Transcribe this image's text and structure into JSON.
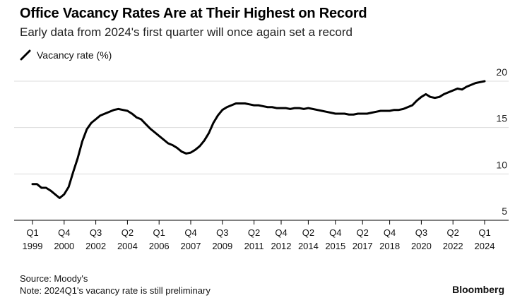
{
  "title": "Office Vacancy Rates Are at Their Highest on Record",
  "subtitle": "Early data from 2024's first quarter will once again set a record",
  "legend": {
    "label": "Vacancy rate (%)",
    "color": "#000000"
  },
  "footer": {
    "source": "Source: Moody's",
    "note": "Note: 2024Q1's vacancy rate is still preliminary",
    "brand": "Bloomberg"
  },
  "chart_data": {
    "type": "line",
    "ylim": [
      5,
      20
    ],
    "yticks": [
      5,
      10,
      15,
      20
    ],
    "grid": true,
    "legend_position": "top-left",
    "x_ticks": [
      {
        "q": "Q1",
        "year": "1999",
        "t": 1999.0
      },
      {
        "q": "Q4",
        "year": "2000",
        "t": 2000.75
      },
      {
        "q": "Q3",
        "year": "2002",
        "t": 2002.5
      },
      {
        "q": "Q2",
        "year": "2004",
        "t": 2004.25
      },
      {
        "q": "Q1",
        "year": "2006",
        "t": 2006.0
      },
      {
        "q": "Q4",
        "year": "2007",
        "t": 2007.75
      },
      {
        "q": "Q3",
        "year": "2009",
        "t": 2009.5
      },
      {
        "q": "Q2",
        "year": "2011",
        "t": 2011.25
      },
      {
        "q": "Q4",
        "year": "2012",
        "t": 2012.75
      },
      {
        "q": "Q2",
        "year": "2014",
        "t": 2014.25
      },
      {
        "q": "Q4",
        "year": "2015",
        "t": 2015.75
      },
      {
        "q": "Q2",
        "year": "2017",
        "t": 2017.25
      },
      {
        "q": "Q4",
        "year": "2018",
        "t": 2018.75
      },
      {
        "q": "Q3",
        "year": "2020",
        "t": 2020.5
      },
      {
        "q": "Q2",
        "year": "2022",
        "t": 2022.25
      },
      {
        "q": "Q1",
        "year": "2024",
        "t": 2024.0
      }
    ],
    "series": [
      {
        "name": "Vacancy rate (%)",
        "points": [
          [
            1999.0,
            8.9
          ],
          [
            1999.25,
            8.9
          ],
          [
            1999.5,
            8.5
          ],
          [
            1999.75,
            8.5
          ],
          [
            2000.0,
            8.2
          ],
          [
            2000.25,
            7.8
          ],
          [
            2000.5,
            7.4
          ],
          [
            2000.75,
            7.8
          ],
          [
            2001.0,
            8.6
          ],
          [
            2001.25,
            10.2
          ],
          [
            2001.5,
            11.7
          ],
          [
            2001.75,
            13.5
          ],
          [
            2002.0,
            14.8
          ],
          [
            2002.25,
            15.5
          ],
          [
            2002.5,
            15.9
          ],
          [
            2002.75,
            16.3
          ],
          [
            2003.0,
            16.5
          ],
          [
            2003.25,
            16.7
          ],
          [
            2003.5,
            16.9
          ],
          [
            2003.75,
            17.0
          ],
          [
            2004.0,
            16.9
          ],
          [
            2004.25,
            16.8
          ],
          [
            2004.5,
            16.5
          ],
          [
            2004.75,
            16.1
          ],
          [
            2005.0,
            15.9
          ],
          [
            2005.25,
            15.4
          ],
          [
            2005.5,
            14.9
          ],
          [
            2005.75,
            14.5
          ],
          [
            2006.0,
            14.1
          ],
          [
            2006.25,
            13.7
          ],
          [
            2006.5,
            13.3
          ],
          [
            2006.75,
            13.1
          ],
          [
            2007.0,
            12.8
          ],
          [
            2007.25,
            12.4
          ],
          [
            2007.5,
            12.2
          ],
          [
            2007.75,
            12.3
          ],
          [
            2008.0,
            12.6
          ],
          [
            2008.25,
            13.0
          ],
          [
            2008.5,
            13.6
          ],
          [
            2008.75,
            14.4
          ],
          [
            2009.0,
            15.5
          ],
          [
            2009.25,
            16.3
          ],
          [
            2009.5,
            16.9
          ],
          [
            2009.75,
            17.2
          ],
          [
            2010.0,
            17.4
          ],
          [
            2010.25,
            17.6
          ],
          [
            2010.5,
            17.6
          ],
          [
            2010.75,
            17.6
          ],
          [
            2011.0,
            17.5
          ],
          [
            2011.25,
            17.4
          ],
          [
            2011.5,
            17.4
          ],
          [
            2011.75,
            17.3
          ],
          [
            2012.0,
            17.2
          ],
          [
            2012.25,
            17.2
          ],
          [
            2012.5,
            17.1
          ],
          [
            2012.75,
            17.1
          ],
          [
            2013.0,
            17.1
          ],
          [
            2013.25,
            17.0
          ],
          [
            2013.5,
            17.1
          ],
          [
            2013.75,
            17.1
          ],
          [
            2014.0,
            17.0
          ],
          [
            2014.25,
            17.1
          ],
          [
            2014.5,
            17.0
          ],
          [
            2014.75,
            16.9
          ],
          [
            2015.0,
            16.8
          ],
          [
            2015.25,
            16.7
          ],
          [
            2015.5,
            16.6
          ],
          [
            2015.75,
            16.5
          ],
          [
            2016.0,
            16.5
          ],
          [
            2016.25,
            16.5
          ],
          [
            2016.5,
            16.4
          ],
          [
            2016.75,
            16.4
          ],
          [
            2017.0,
            16.5
          ],
          [
            2017.25,
            16.5
          ],
          [
            2017.5,
            16.5
          ],
          [
            2017.75,
            16.6
          ],
          [
            2018.0,
            16.7
          ],
          [
            2018.25,
            16.8
          ],
          [
            2018.5,
            16.8
          ],
          [
            2018.75,
            16.8
          ],
          [
            2019.0,
            16.9
          ],
          [
            2019.25,
            16.9
          ],
          [
            2019.5,
            17.0
          ],
          [
            2019.75,
            17.2
          ],
          [
            2020.0,
            17.4
          ],
          [
            2020.25,
            17.9
          ],
          [
            2020.5,
            18.3
          ],
          [
            2020.75,
            18.6
          ],
          [
            2021.0,
            18.3
          ],
          [
            2021.25,
            18.2
          ],
          [
            2021.5,
            18.3
          ],
          [
            2021.75,
            18.6
          ],
          [
            2022.0,
            18.8
          ],
          [
            2022.25,
            19.0
          ],
          [
            2022.5,
            19.2
          ],
          [
            2022.75,
            19.1
          ],
          [
            2023.0,
            19.4
          ],
          [
            2023.25,
            19.6
          ],
          [
            2023.5,
            19.8
          ],
          [
            2023.75,
            19.9
          ],
          [
            2024.0,
            20.0
          ]
        ]
      }
    ]
  }
}
